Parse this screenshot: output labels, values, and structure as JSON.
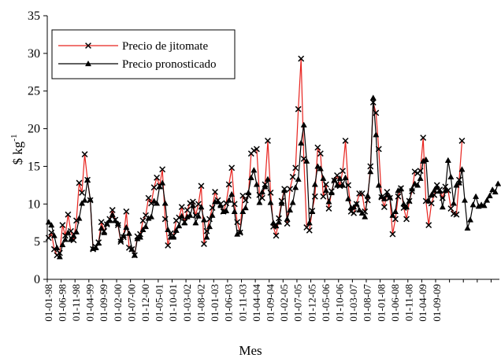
{
  "chart_data": {
    "type": "line",
    "xlabel": "Mes",
    "ylabel_main": "$ kg",
    "ylabel_sup": "-1",
    "ylim": [
      0,
      35
    ],
    "y_ticks": [
      "0",
      "5",
      "10",
      "15",
      "20",
      "25",
      "30",
      "35"
    ],
    "x_tick_labels": [
      "01-01-98",
      "01-06-98",
      "01-11-98",
      "01-04-99",
      "01-09-99",
      "01-02-00",
      "01-07-00",
      "01-12-00",
      "01-05-01",
      "01-10-01",
      "01-03-02",
      "01-08-02",
      "01-01-03",
      "01-06-03",
      "01-11-03",
      "01-04-04",
      "01-09-04",
      "01-02-05",
      "01-07-05",
      "01-12-05",
      "01-05-06",
      "01-10-06",
      "01-03-07",
      "01-08-07",
      "01-01-08",
      "01-06-08",
      "01-11-08",
      "01-04-09",
      "01-09-09"
    ],
    "grid": false,
    "legend_position": "top-left",
    "series": [
      {
        "name": "Precio de jitomate",
        "color": "#e8231e",
        "marker": "x",
        "values": [
          5.5,
          6.2,
          4.0,
          3.2,
          3.5,
          7.2,
          5.8,
          8.6,
          6.4,
          5.2,
          7.8,
          12.8,
          11.5,
          16.6,
          13.2,
          10.5,
          4.0,
          4.3,
          4.9,
          7.6,
          6.4,
          7.3,
          8.0,
          9.2,
          7.9,
          7.2,
          5.0,
          5.6,
          9.0,
          4.2,
          4.0,
          3.2,
          5.7,
          6.0,
          7.8,
          8.5,
          10.8,
          10.1,
          12.2,
          13.5,
          12.4,
          14.6,
          8.0,
          4.5,
          6.1,
          5.8,
          7.8,
          8.2,
          9.6,
          7.6,
          9.2,
          10.1,
          10.3,
          8.5,
          10.0,
          12.4,
          4.7,
          6.4,
          8.0,
          9.5,
          11.6,
          10.5,
          10.0,
          9.0,
          10.1,
          12.6,
          14.8,
          10.0,
          7.6,
          6.2,
          11.1,
          10.5,
          11.1,
          16.7,
          17.1,
          17.3,
          11.2,
          10.8,
          12.6,
          18.4,
          11.5,
          7.0,
          5.8,
          8.1,
          10.4,
          12.0,
          7.4,
          12.0,
          13.6,
          14.8,
          22.6,
          29.3,
          16.0,
          6.9,
          6.5,
          9.1,
          11.0,
          17.5,
          16.7,
          11.0,
          12.6,
          9.4,
          11.7,
          13.1,
          13.8,
          12.4,
          14.4,
          18.4,
          12.5,
          9.0,
          8.8,
          10.0,
          11.4,
          11.4,
          9.0,
          10.5,
          15.0,
          23.5,
          22.1,
          17.3,
          10.9,
          9.6,
          11.6,
          10.8,
          6.0,
          8.0,
          11.0,
          12.1,
          9.5,
          8.0,
          10.4,
          11.7,
          14.3,
          14.1,
          14.4,
          18.8,
          10.4,
          7.2,
          10.1,
          11.2,
          12.5,
          11.9,
          10.8,
          12.3,
          11.8,
          9.4,
          8.7,
          8.6,
          13.2,
          18.4
        ]
      },
      {
        "name": "Precio pronosticado",
        "color": "#000000",
        "marker": "triangle",
        "values": [
          7.6,
          7.2,
          5.8,
          4.2,
          3.0,
          4.6,
          5.3,
          6.2,
          5.3,
          5.8,
          6.3,
          8.1,
          10.1,
          10.5,
          13.2,
          10.6,
          4.1,
          4.2,
          4.8,
          6.8,
          6.2,
          7.4,
          7.8,
          8.6,
          7.8,
          7.4,
          5.2,
          5.8,
          6.9,
          6.1,
          4.0,
          3.2,
          5.4,
          5.6,
          6.6,
          7.0,
          8.1,
          8.3,
          10.4,
          10.1,
          12.3,
          12.8,
          10.1,
          6.6,
          5.6,
          5.6,
          6.5,
          7.1,
          8.4,
          7.5,
          8.3,
          8.5,
          9.8,
          7.5,
          8.4,
          9.6,
          7.9,
          5.6,
          7.0,
          8.5,
          10.3,
          10.3,
          9.8,
          9.0,
          9.1,
          10.5,
          11.3,
          9.0,
          6.0,
          6.3,
          9.0,
          9.5,
          11.5,
          13.5,
          14.5,
          12.6,
          10.2,
          11.6,
          12.3,
          13.3,
          10.2,
          7.5,
          7.1,
          7.6,
          10.1,
          11.8,
          8.0,
          9.2,
          10.2,
          12.2,
          13.3,
          18.1,
          20.5,
          15.7,
          7.5,
          9.0,
          12.6,
          15.0,
          14.7,
          13.4,
          11.8,
          10.3,
          11.5,
          13.2,
          12.5,
          13.4,
          12.5,
          13.5,
          10.7,
          9.5,
          9.6,
          10.0,
          9.2,
          8.8,
          8.3,
          11.1,
          14.3,
          24.1,
          19.2,
          12.5,
          11.0,
          10.7,
          11.2,
          10.9,
          8.5,
          9.0,
          11.8,
          12.0,
          10.0,
          9.6,
          10.4,
          12.0,
          12.7,
          12.5,
          13.4,
          15.7,
          15.9,
          10.4,
          11.2,
          11.8,
          12.2,
          11.7,
          9.6,
          11.8,
          15.8,
          13.6,
          10.1,
          12.5,
          12.8,
          14.6,
          10.5,
          6.8,
          7.9,
          9.9,
          11.0,
          9.7,
          9.9,
          9.8,
          10.5,
          11.1,
          11.9,
          11.6,
          12.7
        ]
      }
    ]
  }
}
